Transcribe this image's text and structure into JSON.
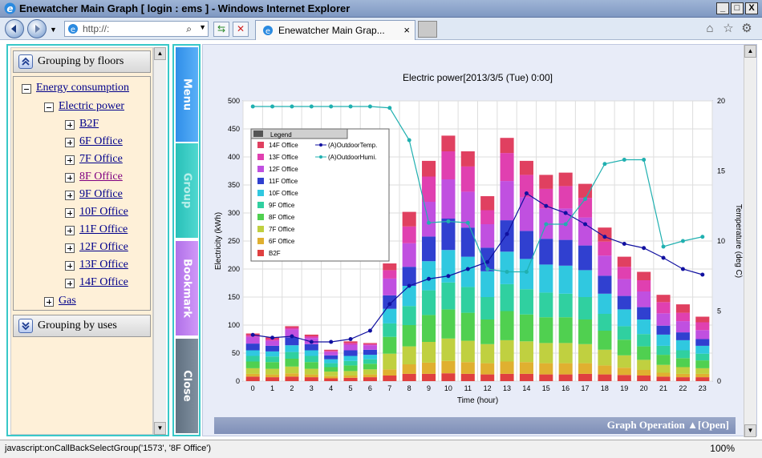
{
  "window": {
    "title": "Enewatcher Main Graph [ login : ems ] - Windows Internet Explorer",
    "minimize": "_",
    "maximize": "□",
    "close": "X"
  },
  "nav": {
    "address": "http://:",
    "tab_label": "Enewatcher Main Grap...",
    "tab_close": "×"
  },
  "left": {
    "grouping_floors": "Grouping by floors",
    "grouping_uses": "Grouping by uses",
    "tree": {
      "energy": "Energy consumption",
      "electric": "Electric power",
      "floors": [
        "B2F",
        "6F Office",
        "7F Office",
        "8F Office",
        "9F Office",
        "10F Office",
        "11F Office",
        "12F Office",
        "13F Office",
        "14F Office"
      ],
      "gas": "Gas"
    }
  },
  "side_buttons": {
    "menu": "Menu",
    "group": "Group",
    "bookmark": "Bookmark",
    "close": "Close"
  },
  "graph_operation": "Graph Operation ▲[Open]",
  "status": {
    "text": "javascript:onCallBackSelectGroup('1573', '8F Office')",
    "zoom": "100%"
  },
  "colors": {
    "menu": "#3a9cf0",
    "group": "#30c8c0",
    "bookmark": "#c080f0",
    "close": "#708090"
  },
  "chart_data": {
    "type": "bar",
    "title": "Electric power[2013/3/5 (Tue) 0:00]",
    "xlabel": "Time (hour)",
    "ylabel": "Electricity (kWh)",
    "y2label": "Temperature (deg C)",
    "ylim": [
      0,
      500
    ],
    "y2lim": [
      0,
      20
    ],
    "categories": [
      "0",
      "1",
      "2",
      "3",
      "4",
      "5",
      "6",
      "7",
      "8",
      "9",
      "10",
      "11",
      "12",
      "13",
      "14",
      "15",
      "16",
      "17",
      "18",
      "19",
      "20",
      "21",
      "22",
      "23"
    ],
    "legend_title": "Legend",
    "legend_position": "top-left",
    "series": [
      {
        "name": "B2F",
        "color": "#e04040",
        "values": [
          8,
          7,
          8,
          7,
          5,
          6,
          7,
          10,
          13,
          13,
          14,
          13,
          12,
          13,
          13,
          12,
          12,
          13,
          12,
          11,
          10,
          8,
          7,
          7
        ]
      },
      {
        "name": "6F Office",
        "color": "#e0b030",
        "values": [
          5,
          5,
          6,
          5,
          4,
          4,
          5,
          11,
          17,
          20,
          22,
          21,
          20,
          22,
          21,
          20,
          20,
          19,
          16,
          13,
          10,
          7,
          6,
          6
        ]
      },
      {
        "name": "7F Office",
        "color": "#c0d040",
        "values": [
          10,
          10,
          12,
          10,
          8,
          8,
          9,
          28,
          32,
          37,
          40,
          38,
          34,
          38,
          37,
          36,
          36,
          34,
          28,
          22,
          18,
          14,
          12,
          10
        ]
      },
      {
        "name": "8F Office",
        "color": "#50d050",
        "values": [
          12,
          12,
          14,
          12,
          8,
          10,
          10,
          30,
          38,
          48,
          52,
          50,
          44,
          52,
          48,
          46,
          46,
          44,
          34,
          28,
          24,
          18,
          16,
          14
        ]
      },
      {
        "name": "9F Office",
        "color": "#30d0a0",
        "values": [
          10,
          10,
          12,
          11,
          7,
          8,
          8,
          24,
          34,
          44,
          48,
          46,
          40,
          48,
          45,
          44,
          42,
          40,
          30,
          24,
          22,
          16,
          14,
          12
        ]
      },
      {
        "name": "10F Office",
        "color": "#30c8e0",
        "values": [
          10,
          9,
          12,
          10,
          7,
          9,
          8,
          26,
          36,
          52,
          58,
          54,
          46,
          58,
          54,
          50,
          50,
          48,
          36,
          30,
          26,
          20,
          18,
          14
        ]
      },
      {
        "name": "11F Office",
        "color": "#3040d0",
        "values": [
          12,
          10,
          14,
          11,
          7,
          10,
          9,
          24,
          34,
          44,
          56,
          52,
          42,
          56,
          50,
          46,
          46,
          44,
          32,
          24,
          22,
          16,
          14,
          12
        ]
      },
      {
        "name": "12F Office",
        "color": "#c050e0",
        "values": [
          12,
          9,
          14,
          11,
          6,
          10,
          8,
          30,
          42,
          62,
          70,
          64,
          42,
          70,
          60,
          54,
          56,
          50,
          36,
          30,
          28,
          22,
          20,
          16
        ]
      },
      {
        "name": "13F Office",
        "color": "#e040b0",
        "values": [
          3,
          3,
          3,
          3,
          2,
          3,
          2,
          15,
          30,
          45,
          50,
          45,
          25,
          50,
          40,
          35,
          40,
          35,
          25,
          22,
          20,
          20,
          15,
          14
        ]
      },
      {
        "name": "14F Office",
        "color": "#e04060",
        "values": [
          3,
          3,
          3,
          3,
          2,
          3,
          2,
          12,
          26,
          28,
          28,
          27,
          25,
          27,
          25,
          25,
          24,
          25,
          25,
          18,
          15,
          13,
          15,
          10
        ]
      }
    ],
    "line_series": [
      {
        "name": "(A)OutdoorTemp.",
        "color": "#1010a0",
        "values": [
          3.3,
          3.1,
          3.2,
          2.8,
          2.8,
          3.0,
          3.6,
          5.5,
          6.8,
          7.3,
          7.5,
          8.0,
          8.5,
          10.5,
          13.4,
          12.5,
          12.0,
          11.2,
          10.3,
          9.8,
          9.5,
          8.8,
          8.0,
          7.6
        ]
      },
      {
        "name": "(A)OutdoorHumi.",
        "color": "#20b0b0",
        "values": [
          19.6,
          19.6,
          19.6,
          19.6,
          19.6,
          19.6,
          19.6,
          19.5,
          17.2,
          11.3,
          11.4,
          11.3,
          8.0,
          7.8,
          7.8,
          11.2,
          11.2,
          13.0,
          15.5,
          15.8,
          15.8,
          9.6,
          10.0,
          10.3
        ]
      }
    ],
    "yticks": [
      0,
      50,
      100,
      150,
      200,
      250,
      300,
      350,
      400,
      450,
      500
    ],
    "y2ticks": [
      0,
      5,
      10,
      15,
      20
    ]
  }
}
